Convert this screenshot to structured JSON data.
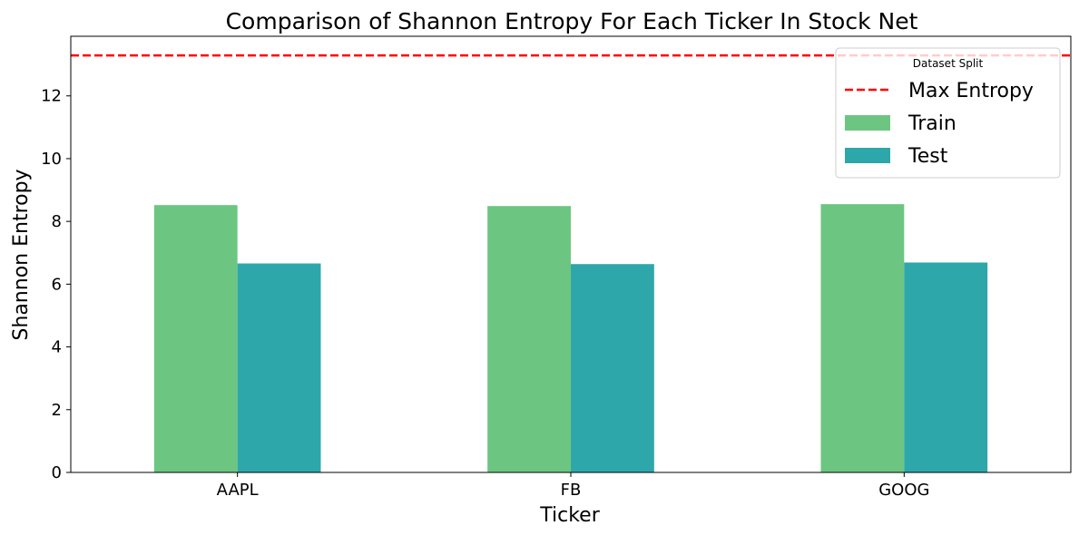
{
  "chart_data": {
    "type": "bar",
    "title": "Comparison of Shannon Entropy For Each Ticker In Stock Net",
    "xlabel": "Ticker",
    "ylabel": "Shannon Entropy",
    "categories": [
      "AAPL",
      "FB",
      "GOOG"
    ],
    "series": [
      {
        "name": "Train",
        "color": "#6cc682",
        "values": [
          8.52,
          8.49,
          8.55
        ]
      },
      {
        "name": "Test",
        "color": "#2ea7aa",
        "values": [
          6.66,
          6.64,
          6.69
        ]
      }
    ],
    "reference_line": {
      "name": "Max Entropy",
      "value": 13.29,
      "color": "#ff0000",
      "style": "dashed"
    },
    "ylim": [
      0,
      13.9
    ],
    "yticks": [
      "0",
      "2",
      "4",
      "6",
      "8",
      "10",
      "12"
    ],
    "legend": {
      "title": "Dataset Split",
      "position": "top-right"
    },
    "grid": false
  }
}
